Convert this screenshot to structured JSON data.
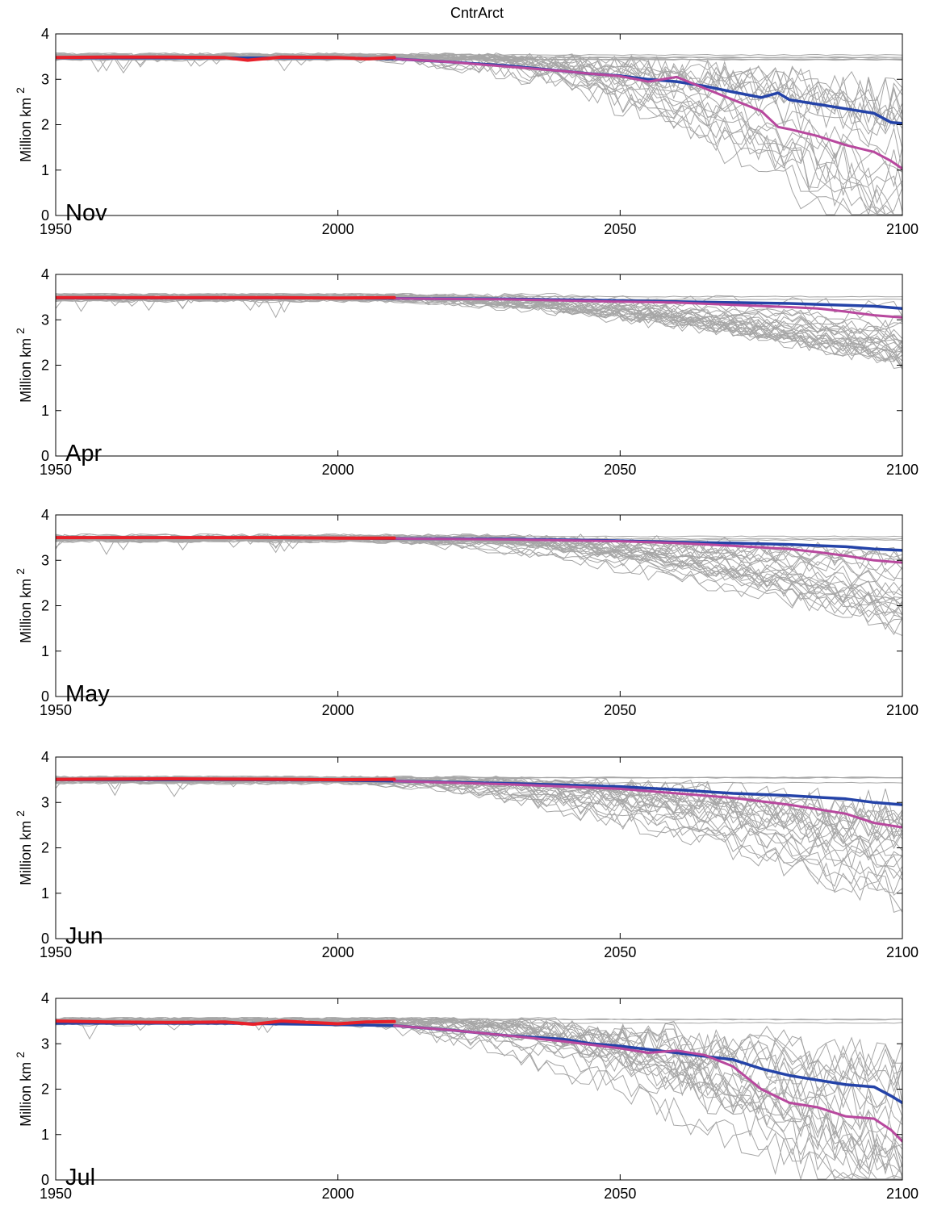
{
  "figure": {
    "title": "CntrArct"
  },
  "chart_data": [
    {
      "type": "line",
      "panel_label": "Nov",
      "ylabel": "Million km",
      "ylabel_superscript": "2",
      "xlim": [
        1950,
        2100
      ],
      "ylim": [
        0,
        4
      ],
      "xticks": [
        1950,
        2000,
        2050,
        2100
      ],
      "yticks": [
        0,
        1,
        2,
        3,
        4
      ],
      "grid": false,
      "series": [
        {
          "color": "#2443a8",
          "width": 3.5,
          "x": [
            1950,
            1960,
            1970,
            1980,
            1990,
            2000,
            2010,
            2020,
            2030,
            2040,
            2045,
            2050,
            2055,
            2060,
            2065,
            2070,
            2075,
            2078,
            2080,
            2085,
            2090,
            2095,
            2098,
            2100
          ],
          "y": [
            3.47,
            3.47,
            3.47,
            3.47,
            3.47,
            3.47,
            3.45,
            3.38,
            3.3,
            3.18,
            3.12,
            3.08,
            3.0,
            2.95,
            2.85,
            2.72,
            2.6,
            2.7,
            2.55,
            2.45,
            2.35,
            2.25,
            2.05,
            2.03
          ]
        },
        {
          "color": "#b8489e",
          "width": 3,
          "x": [
            2010,
            2020,
            2030,
            2040,
            2045,
            2050,
            2055,
            2060,
            2065,
            2070,
            2075,
            2078,
            2080,
            2085,
            2090,
            2095,
            2098,
            2100
          ],
          "y": [
            3.45,
            3.38,
            3.28,
            3.18,
            3.12,
            3.07,
            2.95,
            3.05,
            2.8,
            2.55,
            2.3,
            1.95,
            1.9,
            1.75,
            1.55,
            1.4,
            1.2,
            1.03
          ]
        },
        {
          "color": "#e8202a",
          "width": 4,
          "x": [
            1950,
            1960,
            1970,
            1980,
            1984,
            1990,
            2000,
            2005,
            2010
          ],
          "y": [
            3.48,
            3.49,
            3.49,
            3.48,
            3.42,
            3.49,
            3.48,
            3.45,
            3.48
          ]
        }
      ]
    },
    {
      "type": "line",
      "panel_label": "Apr",
      "ylabel": "Million km",
      "ylabel_superscript": "2",
      "xlim": [
        1950,
        2100
      ],
      "ylim": [
        0,
        4
      ],
      "xticks": [
        1950,
        2000,
        2050,
        2100
      ],
      "yticks": [
        0,
        1,
        2,
        3,
        4
      ],
      "grid": false,
      "series": [
        {
          "color": "#2443a8",
          "width": 3.5,
          "x": [
            1950,
            1980,
            2000,
            2010,
            2030,
            2050,
            2060,
            2070,
            2080,
            2090,
            2095,
            2100
          ],
          "y": [
            3.48,
            3.48,
            3.48,
            3.47,
            3.46,
            3.42,
            3.4,
            3.38,
            3.36,
            3.32,
            3.3,
            3.25
          ]
        },
        {
          "color": "#b8489e",
          "width": 3,
          "x": [
            2010,
            2030,
            2050,
            2060,
            2070,
            2080,
            2085,
            2090,
            2095,
            2100
          ],
          "y": [
            3.47,
            3.45,
            3.4,
            3.38,
            3.33,
            3.28,
            3.25,
            3.18,
            3.1,
            3.05
          ]
        },
        {
          "color": "#e8202a",
          "width": 4,
          "x": [
            1950,
            1970,
            1990,
            2000,
            2010
          ],
          "y": [
            3.49,
            3.49,
            3.49,
            3.48,
            3.49
          ]
        }
      ]
    },
    {
      "type": "line",
      "panel_label": "May",
      "ylabel": "Million km",
      "ylabel_superscript": "2",
      "xlim": [
        1950,
        2100
      ],
      "ylim": [
        0,
        4
      ],
      "xticks": [
        1950,
        2000,
        2050,
        2100
      ],
      "yticks": [
        0,
        1,
        2,
        3,
        4
      ],
      "grid": false,
      "series": [
        {
          "color": "#2443a8",
          "width": 3.5,
          "x": [
            1950,
            1980,
            2000,
            2010,
            2030,
            2050,
            2060,
            2070,
            2080,
            2090,
            2095,
            2100
          ],
          "y": [
            3.5,
            3.5,
            3.49,
            3.48,
            3.47,
            3.43,
            3.4,
            3.38,
            3.35,
            3.3,
            3.25,
            3.22
          ]
        },
        {
          "color": "#b8489e",
          "width": 3,
          "x": [
            2010,
            2030,
            2050,
            2060,
            2070,
            2080,
            2085,
            2090,
            2095,
            2100
          ],
          "y": [
            3.48,
            3.46,
            3.42,
            3.38,
            3.32,
            3.25,
            3.18,
            3.1,
            3.0,
            2.95
          ]
        },
        {
          "color": "#e8202a",
          "width": 4,
          "x": [
            1950,
            1970,
            1990,
            2000,
            2010
          ],
          "y": [
            3.5,
            3.5,
            3.5,
            3.49,
            3.49
          ]
        }
      ]
    },
    {
      "type": "line",
      "panel_label": "Jun",
      "ylabel": "Million km",
      "ylabel_superscript": "2",
      "xlim": [
        1950,
        2100
      ],
      "ylim": [
        0,
        4
      ],
      "xticks": [
        1950,
        2000,
        2050,
        2100
      ],
      "yticks": [
        0,
        1,
        2,
        3,
        4
      ],
      "grid": false,
      "series": [
        {
          "color": "#2443a8",
          "width": 3.5,
          "x": [
            1950,
            1980,
            2000,
            2010,
            2030,
            2050,
            2060,
            2070,
            2080,
            2090,
            2095,
            2100
          ],
          "y": [
            3.5,
            3.5,
            3.49,
            3.47,
            3.42,
            3.35,
            3.28,
            3.2,
            3.15,
            3.08,
            3.0,
            2.95
          ]
        },
        {
          "color": "#b8489e",
          "width": 3,
          "x": [
            2010,
            2030,
            2050,
            2060,
            2070,
            2080,
            2085,
            2090,
            2095,
            2100
          ],
          "y": [
            3.47,
            3.4,
            3.3,
            3.2,
            3.1,
            2.95,
            2.85,
            2.75,
            2.55,
            2.45
          ]
        },
        {
          "color": "#e8202a",
          "width": 4,
          "x": [
            1950,
            1970,
            1990,
            2000,
            2010
          ],
          "y": [
            3.51,
            3.52,
            3.51,
            3.5,
            3.51
          ]
        }
      ]
    },
    {
      "type": "line",
      "panel_label": "Jul",
      "ylabel": "Million km",
      "ylabel_superscript": "2",
      "xlim": [
        1950,
        2100
      ],
      "ylim": [
        0,
        4
      ],
      "xticks": [
        1950,
        2000,
        2050,
        2100
      ],
      "yticks": [
        0,
        1,
        2,
        3,
        4
      ],
      "grid": false,
      "series": [
        {
          "color": "#2443a8",
          "width": 3.5,
          "x": [
            1950,
            1980,
            2000,
            2010,
            2020,
            2030,
            2040,
            2045,
            2050,
            2060,
            2070,
            2075,
            2080,
            2085,
            2090,
            2095,
            2098,
            2100
          ],
          "y": [
            3.45,
            3.45,
            3.42,
            3.4,
            3.3,
            3.18,
            3.1,
            3.0,
            2.95,
            2.8,
            2.65,
            2.45,
            2.3,
            2.2,
            2.1,
            2.05,
            1.85,
            1.7
          ]
        },
        {
          "color": "#b8489e",
          "width": 3,
          "x": [
            2010,
            2020,
            2030,
            2040,
            2050,
            2055,
            2060,
            2065,
            2070,
            2075,
            2080,
            2085,
            2090,
            2095,
            2098,
            2100
          ],
          "y": [
            3.4,
            3.3,
            3.18,
            3.05,
            2.9,
            2.8,
            2.85,
            2.75,
            2.5,
            2.0,
            1.7,
            1.6,
            1.4,
            1.35,
            1.1,
            0.85
          ]
        },
        {
          "color": "#e8202a",
          "width": 4,
          "x": [
            1950,
            1960,
            1970,
            1980,
            1985,
            1990,
            2000,
            2005,
            2010
          ],
          "y": [
            3.5,
            3.48,
            3.47,
            3.48,
            3.43,
            3.5,
            3.44,
            3.48,
            3.49
          ]
        }
      ]
    }
  ]
}
